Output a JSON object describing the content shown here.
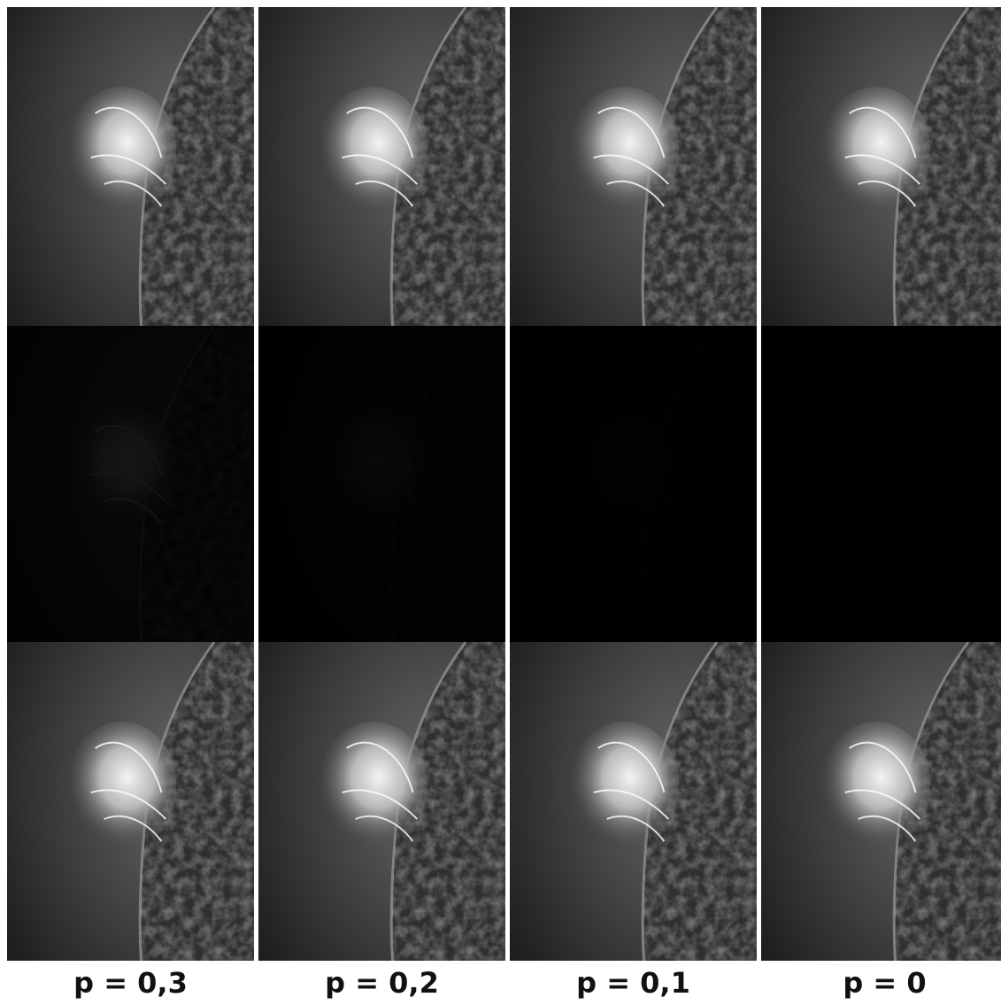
{
  "columns": [
    {
      "label": "p = 0,3"
    },
    {
      "label": "p = 0,2"
    },
    {
      "label": "p = 0,1"
    },
    {
      "label": "p = 0"
    }
  ]
}
